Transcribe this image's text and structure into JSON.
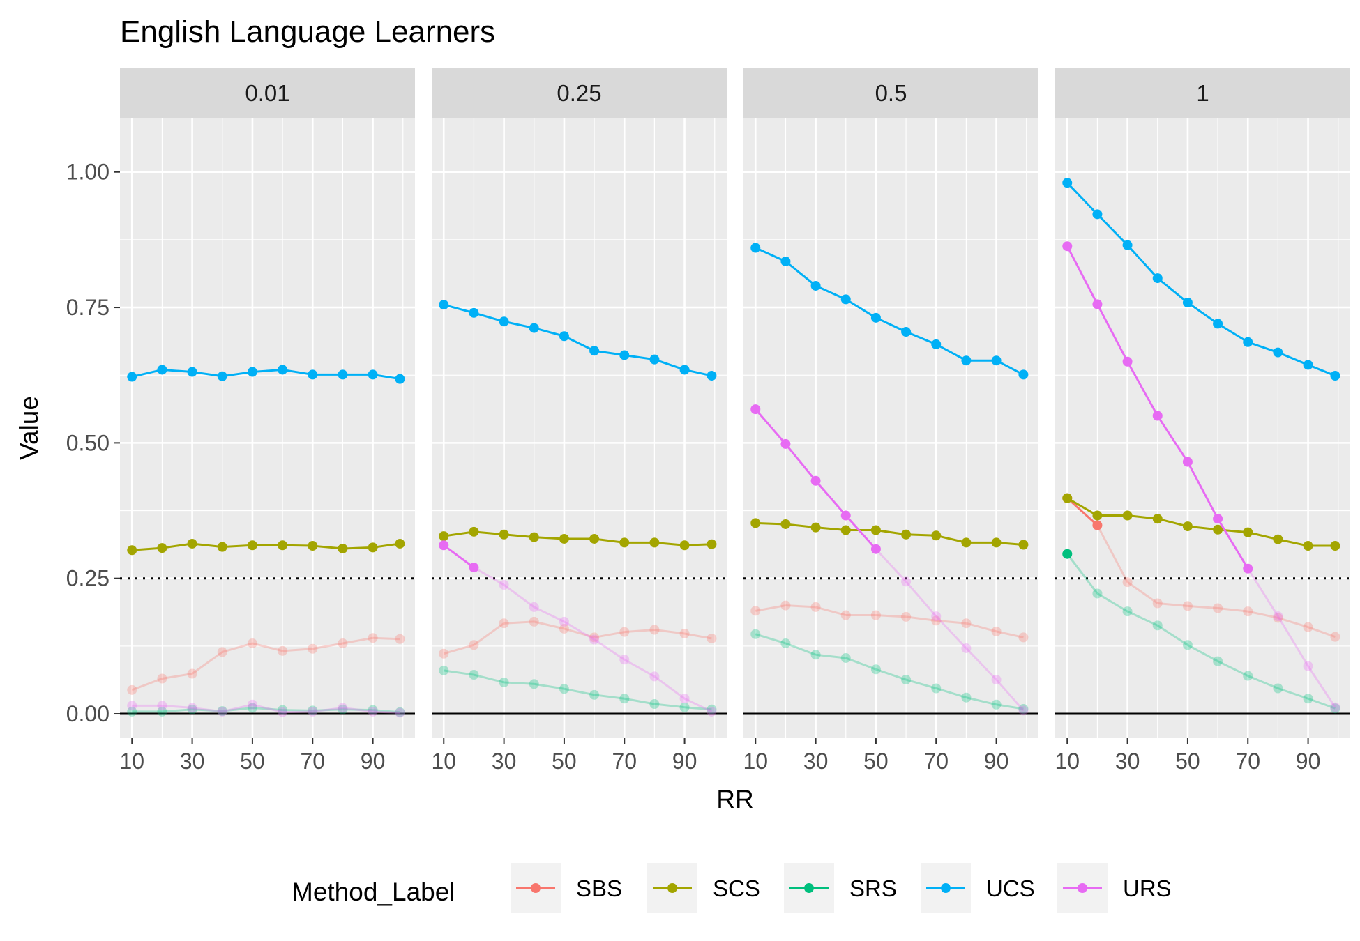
{
  "chart_data": {
    "type": "line",
    "title": "English Language Learners",
    "xlabel": "RR",
    "ylabel": "Value",
    "xlim": [
      6,
      104
    ],
    "ylim": [
      -0.045,
      1.1
    ],
    "x_ticks": [
      10,
      30,
      50,
      70,
      90
    ],
    "y_ticks": [
      0.0,
      0.25,
      0.5,
      0.75,
      1.0
    ],
    "y_tick_labels": [
      "0.00",
      "0.25",
      "0.50",
      "0.75",
      "1.00"
    ],
    "reference_lines": [
      {
        "y": 0.25,
        "style": "dotted"
      },
      {
        "y": 0.0,
        "style": "solid"
      }
    ],
    "grid": true,
    "legend": {
      "title": "Method_Label",
      "position": "bottom",
      "entries": [
        "SBS",
        "SCS",
        "SRS",
        "UCS",
        "URS"
      ]
    },
    "colors": {
      "SBS": "#F8766D",
      "SCS": "#A3A500",
      "SRS": "#00BF7D",
      "UCS": "#00B0F6",
      "URS": "#E76BF3"
    },
    "x": [
      10,
      20,
      30,
      40,
      50,
      60,
      70,
      80,
      90,
      99
    ],
    "facets": [
      {
        "label": "0.01",
        "series": [
          {
            "name": "SBS",
            "highlighted": false,
            "values": [
              0.044,
              0.065,
              0.074,
              0.114,
              0.13,
              0.116,
              0.12,
              0.13,
              0.14,
              0.138
            ]
          },
          {
            "name": "SCS",
            "highlighted": true,
            "values": [
              0.302,
              0.306,
              0.314,
              0.308,
              0.311,
              0.311,
              0.31,
              0.305,
              0.307,
              0.314
            ]
          },
          {
            "name": "SRS",
            "highlighted": false,
            "values": [
              0.004,
              0.004,
              0.008,
              0.005,
              0.011,
              0.007,
              0.006,
              0.008,
              0.007,
              0.003
            ]
          },
          {
            "name": "UCS",
            "highlighted": true,
            "values": [
              0.622,
              0.635,
              0.631,
              0.623,
              0.631,
              0.635,
              0.626,
              0.626,
              0.626,
              0.618
            ]
          },
          {
            "name": "URS",
            "highlighted": false,
            "values": [
              0.015,
              0.015,
              0.011,
              0.004,
              0.017,
              0.003,
              0.004,
              0.011,
              0.004,
              0.002
            ]
          }
        ]
      },
      {
        "label": "0.25",
        "series": [
          {
            "name": "SBS",
            "highlighted": false,
            "values": [
              0.111,
              0.127,
              0.167,
              0.17,
              0.157,
              0.141,
              0.151,
              0.155,
              0.148,
              0.139
            ]
          },
          {
            "name": "SCS",
            "highlighted": true,
            "values": [
              0.328,
              0.336,
              0.331,
              0.326,
              0.323,
              0.323,
              0.316,
              0.316,
              0.311,
              0.313
            ]
          },
          {
            "name": "SRS",
            "highlighted": false,
            "values": [
              0.08,
              0.072,
              0.058,
              0.055,
              0.046,
              0.035,
              0.028,
              0.018,
              0.012,
              0.008
            ]
          },
          {
            "name": "UCS",
            "highlighted": true,
            "values": [
              0.755,
              0.74,
              0.724,
              0.712,
              0.697,
              0.67,
              0.662,
              0.654,
              0.635,
              0.624
            ]
          },
          {
            "name": "URS",
            "highlighted": [
              true,
              true,
              false,
              false,
              false,
              false,
              false,
              false,
              false,
              false
            ],
            "values": [
              0.311,
              0.27,
              0.238,
              0.197,
              0.17,
              0.137,
              0.1,
              0.069,
              0.028,
              0.004
            ]
          }
        ]
      },
      {
        "label": "0.5",
        "series": [
          {
            "name": "SBS",
            "highlighted": false,
            "values": [
              0.19,
              0.2,
              0.197,
              0.182,
              0.182,
              0.179,
              0.172,
              0.167,
              0.152,
              0.141
            ]
          },
          {
            "name": "SCS",
            "highlighted": true,
            "values": [
              0.352,
              0.35,
              0.344,
              0.339,
              0.339,
              0.331,
              0.329,
              0.316,
              0.316,
              0.312
            ]
          },
          {
            "name": "SRS",
            "highlighted": false,
            "values": [
              0.147,
              0.13,
              0.109,
              0.103,
              0.082,
              0.063,
              0.047,
              0.03,
              0.017,
              0.009
            ]
          },
          {
            "name": "UCS",
            "highlighted": true,
            "values": [
              0.86,
              0.835,
              0.79,
              0.765,
              0.731,
              0.705,
              0.682,
              0.652,
              0.652,
              0.626
            ]
          },
          {
            "name": "URS",
            "highlighted": [
              true,
              true,
              true,
              true,
              true,
              false,
              false,
              false,
              false,
              false
            ],
            "values": [
              0.562,
              0.498,
              0.43,
              0.366,
              0.304,
              0.244,
              0.18,
              0.121,
              0.063,
              0.006
            ]
          }
        ]
      },
      {
        "label": "1",
        "series": [
          {
            "name": "SBS",
            "highlighted": [
              true,
              true,
              false,
              false,
              false,
              false,
              false,
              false,
              false,
              false
            ],
            "values": [
              0.398,
              0.348,
              0.243,
              0.204,
              0.199,
              0.195,
              0.189,
              0.177,
              0.16,
              0.142
            ]
          },
          {
            "name": "SCS",
            "highlighted": true,
            "values": [
              0.398,
              0.366,
              0.366,
              0.36,
              0.346,
              0.34,
              0.335,
              0.322,
              0.31,
              0.31
            ]
          },
          {
            "name": "SRS",
            "highlighted": [
              true,
              false,
              false,
              false,
              false,
              false,
              false,
              false,
              false,
              false
            ],
            "values": [
              0.295,
              0.222,
              0.189,
              0.163,
              0.127,
              0.097,
              0.07,
              0.047,
              0.028,
              0.01
            ]
          },
          {
            "name": "UCS",
            "highlighted": true,
            "values": [
              0.98,
              0.922,
              0.865,
              0.804,
              0.759,
              0.72,
              0.686,
              0.667,
              0.644,
              0.624
            ]
          },
          {
            "name": "URS",
            "highlighted": [
              true,
              true,
              true,
              true,
              true,
              true,
              true,
              false,
              false,
              false
            ],
            "values": [
              0.863,
              0.756,
              0.65,
              0.55,
              0.465,
              0.36,
              0.268,
              0.18,
              0.088,
              0.012
            ]
          }
        ]
      }
    ]
  }
}
